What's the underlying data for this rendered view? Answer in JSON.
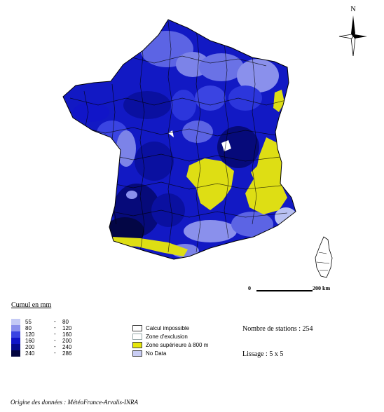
{
  "map": {
    "region": "France",
    "colors": {
      "very_light": "#b8c0f2",
      "light": "#7c83e8",
      "medium": "#2c36dc",
      "strong": "#0f12b4",
      "dark": "#060a7a",
      "darkest": "#030645",
      "yellow": "#dede14",
      "white": "#ffffff"
    }
  },
  "compass": {
    "north_label": "N"
  },
  "scale": {
    "start_label": "0",
    "end_label": "200 km"
  },
  "legend": {
    "title": "Cumul en mm",
    "classes": [
      {
        "low": "55",
        "high": "80",
        "color": "#c4caf5"
      },
      {
        "low": "80",
        "high": "120",
        "color": "#8a90ec"
      },
      {
        "low": "120",
        "high": "160",
        "color": "#3a44e2"
      },
      {
        "low": "160",
        "high": "200",
        "color": "#1115c8"
      },
      {
        "low": "200",
        "high": "240",
        "color": "#060a8e"
      },
      {
        "low": "240",
        "high": "286",
        "color": "#02043f"
      }
    ],
    "dash": "-",
    "categories": [
      {
        "label": "Calcul impossible",
        "color": "#ffffff"
      },
      {
        "label": "Zone d'exclusion",
        "color": "#ffffff"
      },
      {
        "label": "Zone supérieure à 800 m",
        "color": "#e6e60a"
      },
      {
        "label": "No Data",
        "color": "#c9cdf4"
      }
    ]
  },
  "stats": {
    "stations": "Nombre de stations : 254",
    "smoothing": "Lissage : 5 x 5"
  },
  "source": "Origine des données : MétéoFrance-Arvalis-INRA"
}
